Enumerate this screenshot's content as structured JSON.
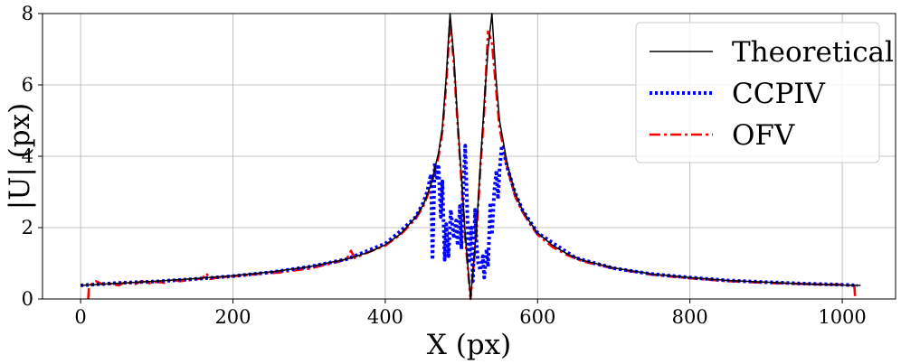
{
  "chart_data": {
    "type": "line",
    "title": "",
    "xlabel": "X (px)",
    "ylabel": "|U| (px)",
    "xlim": [
      -50,
      1070
    ],
    "ylim": [
      0,
      8
    ],
    "x_ticks": [
      0,
      200,
      400,
      600,
      800,
      1000
    ],
    "y_ticks": [
      0,
      2,
      4,
      6,
      8
    ],
    "grid": true,
    "legend_position": "top-right",
    "colors": {
      "theoretical": "#000000",
      "ccpiv": "#0000ff",
      "ofv": "#ff0000"
    },
    "series": [
      {
        "name": "Theoretical",
        "style": "solid",
        "x": [
          0,
          50,
          100,
          150,
          200,
          250,
          300,
          350,
          380,
          400,
          420,
          440,
          450,
          460,
          470,
          475,
          480,
          485,
          490,
          495,
          500,
          505,
          512,
          520,
          525,
          530,
          535,
          540,
          545,
          550,
          560,
          570,
          580,
          590,
          600,
          620,
          640,
          660,
          700,
          750,
          800,
          850,
          900,
          950,
          1000,
          1024
        ],
        "y": [
          0.38,
          0.44,
          0.5,
          0.57,
          0.65,
          0.76,
          0.9,
          1.12,
          1.32,
          1.52,
          1.82,
          2.3,
          2.65,
          3.2,
          4.1,
          4.8,
          6.2,
          8.0,
          6.8,
          5.0,
          3.4,
          1.8,
          0.0,
          2.0,
          3.8,
          5.5,
          7.0,
          8.0,
          6.3,
          5.0,
          3.8,
          3.0,
          2.5,
          2.15,
          1.85,
          1.5,
          1.25,
          1.08,
          0.87,
          0.7,
          0.6,
          0.52,
          0.47,
          0.42,
          0.39,
          0.38
        ]
      },
      {
        "name": "CCPIV",
        "style": "dotted",
        "x": [
          0,
          50,
          100,
          150,
          200,
          250,
          300,
          350,
          400,
          420,
          440,
          450,
          455,
          460,
          462,
          465,
          468,
          470,
          473,
          475,
          478,
          480,
          483,
          486,
          490,
          493,
          495,
          498,
          500,
          502,
          505,
          508,
          510,
          513,
          515,
          518,
          520,
          522,
          525,
          528,
          530,
          533,
          535,
          538,
          540,
          543,
          546,
          548,
          550,
          553,
          556,
          560,
          570,
          580,
          600,
          650,
          700,
          750,
          800,
          850,
          900,
          950,
          1000,
          1020
        ],
        "y": [
          0.38,
          0.45,
          0.49,
          0.56,
          0.64,
          0.75,
          0.9,
          1.12,
          1.55,
          1.9,
          2.3,
          2.7,
          3.0,
          3.5,
          1.1,
          3.8,
          3.4,
          3.7,
          2.3,
          3.3,
          1.1,
          2.1,
          1.2,
          2.5,
          1.7,
          2.2,
          1.5,
          2.6,
          1.4,
          2.9,
          4.3,
          2.2,
          1.0,
          2.0,
          0.5,
          2.5,
          1.5,
          1.0,
          0.8,
          1.2,
          0.6,
          1.4,
          0.9,
          2.7,
          1.8,
          3.0,
          3.6,
          2.8,
          3.6,
          4.3,
          4.1,
          3.7,
          3.0,
          2.5,
          1.85,
          1.15,
          0.86,
          0.7,
          0.6,
          0.52,
          0.47,
          0.43,
          0.4,
          0.38
        ]
      },
      {
        "name": "OFV",
        "style": "dashdot",
        "x": [
          10,
          11,
          20,
          30,
          40,
          50,
          60,
          70,
          80,
          90,
          100,
          110,
          120,
          130,
          140,
          150,
          160,
          165,
          170,
          180,
          200,
          220,
          240,
          260,
          280,
          300,
          320,
          340,
          350,
          355,
          360,
          380,
          400,
          420,
          440,
          450,
          460,
          470,
          475,
          480,
          485,
          490,
          495,
          500,
          505,
          512,
          520,
          525,
          530,
          535,
          540,
          545,
          550,
          560,
          570,
          580,
          590,
          600,
          620,
          640,
          660,
          700,
          750,
          800,
          850,
          900,
          950,
          980,
          1000,
          1010,
          1016,
          1017
        ],
        "y": [
          0.0,
          0.36,
          0.5,
          0.4,
          0.42,
          0.38,
          0.48,
          0.4,
          0.5,
          0.44,
          0.48,
          0.45,
          0.55,
          0.5,
          0.52,
          0.55,
          0.58,
          0.72,
          0.56,
          0.6,
          0.64,
          0.67,
          0.72,
          0.74,
          0.8,
          0.85,
          0.95,
          1.05,
          1.15,
          1.35,
          1.15,
          1.33,
          1.5,
          1.8,
          2.25,
          2.6,
          3.15,
          4.0,
          4.7,
          6.0,
          7.8,
          6.6,
          4.9,
          3.3,
          1.7,
          0.0,
          1.9,
          3.7,
          5.3,
          7.5,
          7.2,
          6.0,
          4.8,
          3.7,
          2.9,
          2.45,
          2.1,
          1.8,
          1.45,
          1.22,
          1.05,
          0.85,
          0.68,
          0.58,
          0.5,
          0.45,
          0.42,
          0.4,
          0.4,
          0.38,
          0.36,
          0.0
        ]
      }
    ]
  }
}
